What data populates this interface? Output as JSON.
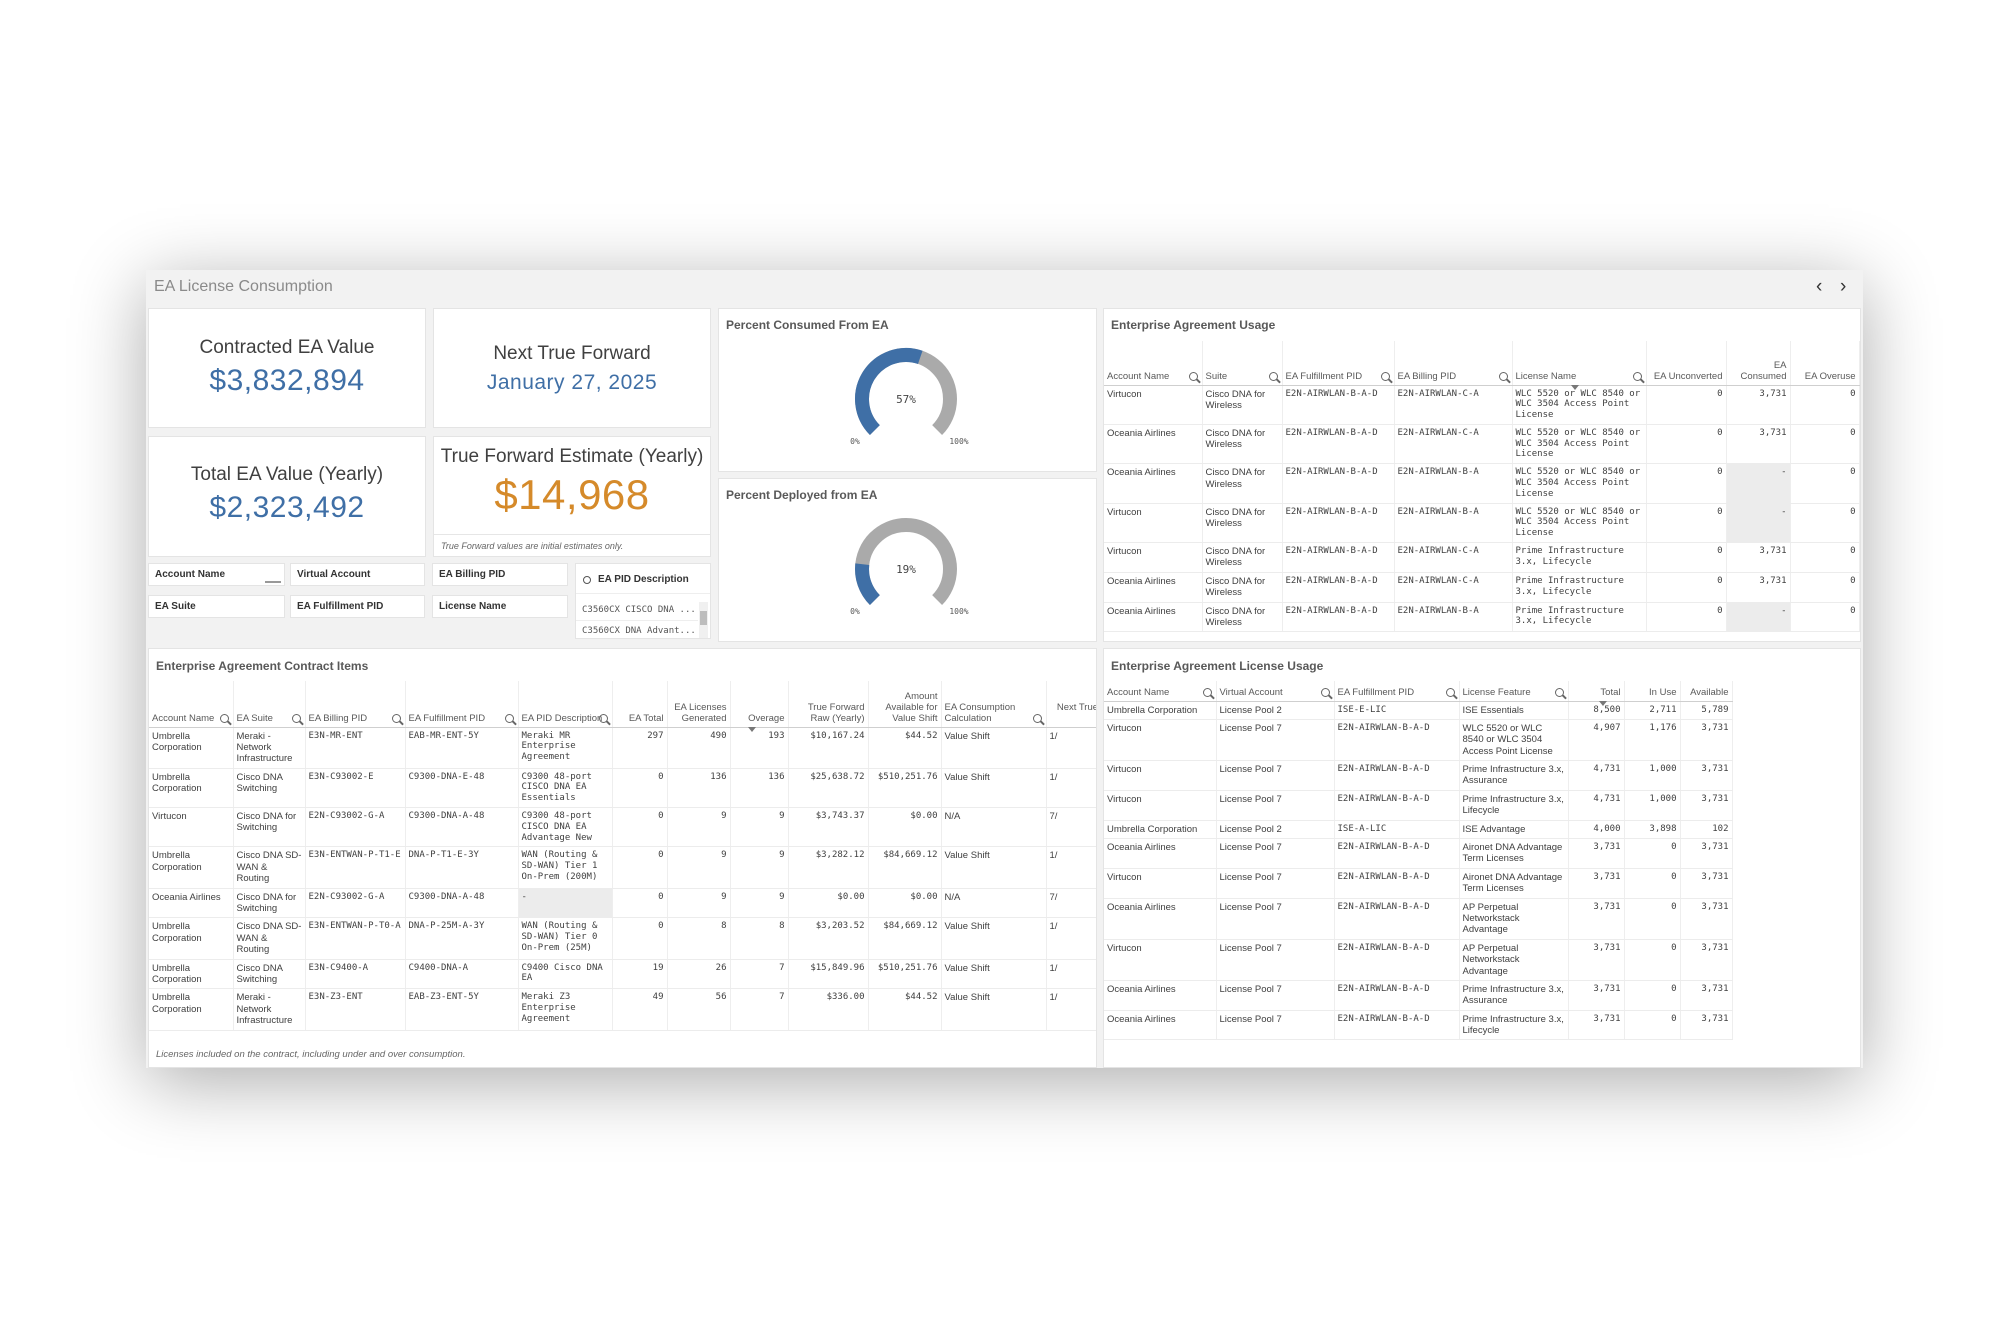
{
  "app": {
    "title": "EA License Consumption",
    "nav_prev": "‹",
    "nav_next": "›"
  },
  "kpis": {
    "contracted": {
      "label": "Contracted EA Value",
      "value": "$3,832,894"
    },
    "next_tf": {
      "label": "Next True Forward",
      "value": "January 27, 2025"
    },
    "total": {
      "label": "Total EA Value (Yearly)",
      "value": "$2,323,492"
    },
    "tf_estimate": {
      "label": "True Forward Estimate (Yearly)",
      "value": "$14,968",
      "note": "True Forward values are initial estimates only."
    }
  },
  "colors": {
    "blue": "#3f6fa6",
    "orange": "#d58a2a",
    "gauge_gray": "#aaaaaa"
  },
  "gauges": {
    "consumed": {
      "title": "Percent Consumed From EA",
      "percent": 57,
      "label": "57%",
      "min": "0%",
      "max": "100%"
    },
    "deployed": {
      "title": "Percent Deployed from EA",
      "percent": 19,
      "label": "19%",
      "min": "0%",
      "max": "100%"
    }
  },
  "filters": {
    "account_name": "Account Name",
    "virtual_account": "Virtual Account",
    "ea_billing_pid": "EA Billing PID",
    "ea_suite": "EA Suite",
    "ea_fulfillment_pid": "EA Fulfillment PID",
    "license_name": "License Name",
    "pid_description": {
      "label": "EA PID Description",
      "options": [
        "C3560CX CISCO DNA ...",
        "C3560CX DNA Advant..."
      ]
    }
  },
  "usage": {
    "title": "Enterprise Agreement Usage",
    "headers": [
      "Account Name",
      "Suite",
      "EA Fulfillment PID",
      "EA Billing PID",
      "License Name",
      "EA Unconverted",
      "EA Consumed",
      "EA Overuse"
    ],
    "rows": [
      [
        "Virtucon",
        "Cisco DNA for Wireless",
        "E2N-AIRWLAN-B-A-D",
        "E2N-AIRWLAN-C-A",
        "WLC 5520 or WLC 8540 or WLC 3504 Access Point License",
        "0",
        "3,731",
        "0"
      ],
      [
        "Oceania Airlines",
        "Cisco DNA for Wireless",
        "E2N-AIRWLAN-B-A-D",
        "E2N-AIRWLAN-C-A",
        "WLC 5520 or WLC 8540 or WLC 3504 Access Point License",
        "0",
        "3,731",
        "0"
      ],
      [
        "Oceania Airlines",
        "Cisco DNA for Wireless",
        "E2N-AIRWLAN-B-A-D",
        "E2N-AIRWLAN-B-A",
        "WLC 5520 or WLC 8540 or WLC 3504 Access Point License",
        "0",
        "-",
        "0"
      ],
      [
        "Virtucon",
        "Cisco DNA for Wireless",
        "E2N-AIRWLAN-B-A-D",
        "E2N-AIRWLAN-B-A",
        "WLC 5520 or WLC 8540 or WLC 3504 Access Point License",
        "0",
        "-",
        "0"
      ],
      [
        "Virtucon",
        "Cisco DNA for Wireless",
        "E2N-AIRWLAN-B-A-D",
        "E2N-AIRWLAN-C-A",
        "Prime Infrastructure 3.x, Lifecycle",
        "0",
        "3,731",
        "0"
      ],
      [
        "Oceania Airlines",
        "Cisco DNA for Wireless",
        "E2N-AIRWLAN-B-A-D",
        "E2N-AIRWLAN-C-A",
        "Prime Infrastructure 3.x, Lifecycle",
        "0",
        "3,731",
        "0"
      ],
      [
        "Oceania Airlines",
        "Cisco DNA for Wireless",
        "E2N-AIRWLAN-B-A-D",
        "E2N-AIRWLAN-B-A",
        "Prime Infrastructure 3.x, Lifecycle",
        "0",
        "-",
        "0"
      ]
    ]
  },
  "contract": {
    "title": "Enterprise Agreement Contract Items",
    "headers": [
      "Account Name",
      "EA Suite",
      "EA Billing PID",
      "EA Fulfillment PID",
      "EA PID Description",
      "EA Total",
      "EA Licenses Generated",
      "Overage",
      "True Forward Raw (Yearly)",
      "Amount Available for Value Shift",
      "EA Consumption Calculation",
      "Next True Forward Date"
    ],
    "rows": [
      [
        "Umbrella Corporation",
        "Meraki - Network Infrastructure",
        "E3N-MR-ENT",
        "EAB-MR-ENT-5Y",
        "Meraki MR Enterprise Agreement",
        "297",
        "490",
        "193",
        "$10,167.24",
        "$44.52",
        "Value Shift",
        "1/"
      ],
      [
        "Umbrella Corporation",
        "Cisco DNA Switching",
        "E3N-C93002-E",
        "C9300-DNA-E-48",
        "C9300 48-port CISCO DNA EA Essentials",
        "0",
        "136",
        "136",
        "$25,638.72",
        "$510,251.76",
        "Value Shift",
        "1/"
      ],
      [
        "Virtucon",
        "Cisco DNA for Switching",
        "E2N-C93002-G-A",
        "C9300-DNA-A-48",
        "C9300 48-port CISCO DNA EA Advantage New",
        "0",
        "9",
        "9",
        "$3,743.37",
        "$0.00",
        "N/A",
        "7/"
      ],
      [
        "Umbrella Corporation",
        "Cisco DNA SD-WAN & Routing",
        "E3N-ENTWAN-P-T1-E",
        "DNA-P-T1-E-3Y",
        "WAN (Routing & SD-WAN) Tier 1 On-Prem (200M)",
        "0",
        "9",
        "9",
        "$3,282.12",
        "$84,669.12",
        "Value Shift",
        "1/"
      ],
      [
        "Oceania Airlines",
        "Cisco DNA for Switching",
        "E2N-C93002-G-A",
        "C9300-DNA-A-48",
        "-",
        "0",
        "9",
        "9",
        "$0.00",
        "$0.00",
        "N/A",
        "7/"
      ],
      [
        "Umbrella Corporation",
        "Cisco DNA SD-WAN & Routing",
        "E3N-ENTWAN-P-T0-A",
        "DNA-P-25M-A-3Y",
        "WAN (Routing & SD-WAN) Tier 0 On-Prem (25M)",
        "0",
        "8",
        "8",
        "$3,203.52",
        "$84,669.12",
        "Value Shift",
        "1/"
      ],
      [
        "Umbrella Corporation",
        "Cisco DNA Switching",
        "E3N-C9400-A",
        "C9400-DNA-A",
        "C9400 Cisco DNA EA",
        "19",
        "26",
        "7",
        "$15,849.96",
        "$510,251.76",
        "Value Shift",
        "1/"
      ],
      [
        "Umbrella Corporation",
        "Meraki - Network Infrastructure",
        "E3N-Z3-ENT",
        "EAB-Z3-ENT-5Y",
        "Meraki Z3 Enterprise Agreement",
        "49",
        "56",
        "7",
        "$336.00",
        "$44.52",
        "Value Shift",
        "1/"
      ]
    ],
    "footnote": "Licenses included on the contract, including under and over consumption."
  },
  "license": {
    "title": "Enterprise Agreement License Usage",
    "headers": [
      "Account Name",
      "Virtual Account",
      "EA Fulfillment PID",
      "License Feature",
      "Total",
      "In Use",
      "Available"
    ],
    "rows": [
      [
        "Umbrella Corporation",
        "License Pool 2",
        "ISE-E-LIC",
        "ISE Essentials",
        "8,500",
        "2,711",
        "5,789"
      ],
      [
        "Virtucon",
        "License Pool 7",
        "E2N-AIRWLAN-B-A-D",
        "WLC 5520 or WLC 8540 or WLC 3504 Access Point License",
        "4,907",
        "1,176",
        "3,731"
      ],
      [
        "Virtucon",
        "License Pool 7",
        "E2N-AIRWLAN-B-A-D",
        "Prime Infrastructure 3.x, Assurance",
        "4,731",
        "1,000",
        "3,731"
      ],
      [
        "Virtucon",
        "License Pool 7",
        "E2N-AIRWLAN-B-A-D",
        "Prime Infrastructure 3.x, Lifecycle",
        "4,731",
        "1,000",
        "3,731"
      ],
      [
        "Umbrella Corporation",
        "License Pool 2",
        "ISE-A-LIC",
        "ISE Advantage",
        "4,000",
        "3,898",
        "102"
      ],
      [
        "Oceania Airlines",
        "License Pool 7",
        "E2N-AIRWLAN-B-A-D",
        "Aironet DNA Advantage Term Licenses",
        "3,731",
        "0",
        "3,731"
      ],
      [
        "Virtucon",
        "License Pool 7",
        "E2N-AIRWLAN-B-A-D",
        "Aironet DNA Advantage Term Licenses",
        "3,731",
        "0",
        "3,731"
      ],
      [
        "Oceania Airlines",
        "License Pool 7",
        "E2N-AIRWLAN-B-A-D",
        "AP Perpetual Networkstack Advantage",
        "3,731",
        "0",
        "3,731"
      ],
      [
        "Virtucon",
        "License Pool 7",
        "E2N-AIRWLAN-B-A-D",
        "AP Perpetual Networkstack Advantage",
        "3,731",
        "0",
        "3,731"
      ],
      [
        "Oceania Airlines",
        "License Pool 7",
        "E2N-AIRWLAN-B-A-D",
        "Prime Infrastructure 3.x, Assurance",
        "3,731",
        "0",
        "3,731"
      ],
      [
        "Oceania Airlines",
        "License Pool 7",
        "E2N-AIRWLAN-B-A-D",
        "Prime Infrastructure 3.x, Lifecycle",
        "3,731",
        "0",
        "3,731"
      ]
    ]
  }
}
